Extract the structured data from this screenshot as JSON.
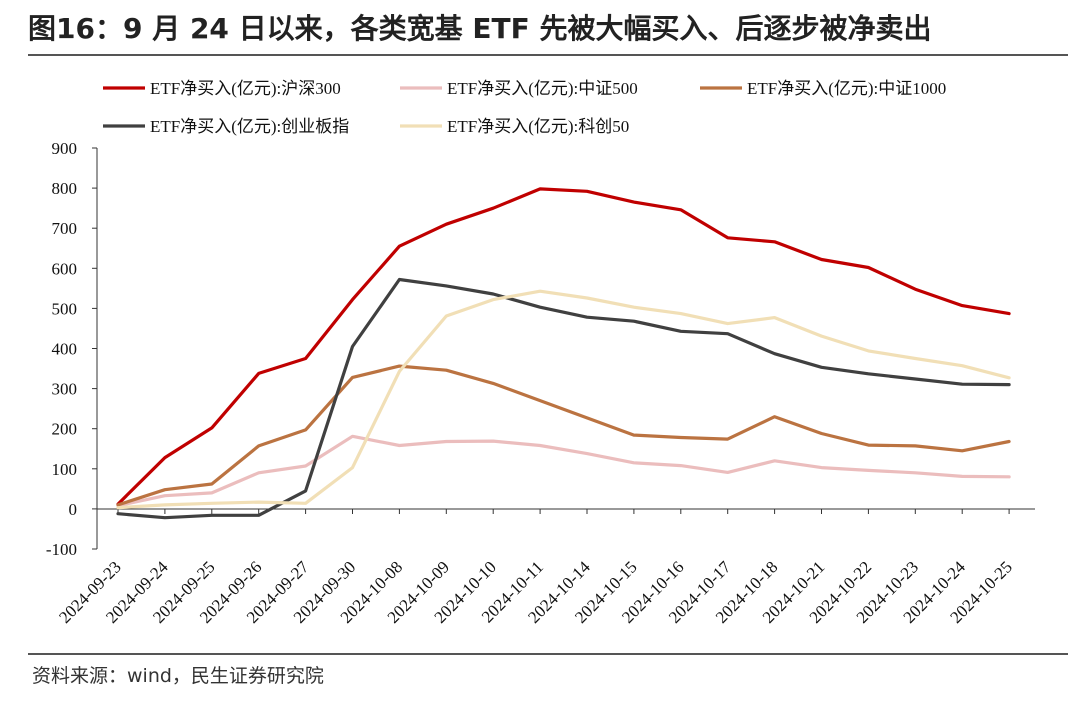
{
  "title": "图16：9 月 24 日以来，各类宽基 ETF 先被大幅买入、后逐步被净卖出",
  "source": "资料来源：wind，民生证券研究院",
  "chart_data": {
    "type": "line",
    "title": "图16：9 月 24 日以来，各类宽基 ETF 先被大幅买入、后逐步被净卖出",
    "xlabel": "",
    "ylabel": "",
    "ylim": [
      -100,
      900
    ],
    "yticks": [
      -100,
      0,
      100,
      200,
      300,
      400,
      500,
      600,
      700,
      800,
      900
    ],
    "grid": false,
    "legend_position": "top",
    "categories": [
      "2024-09-23",
      "2024-09-24",
      "2024-09-25",
      "2024-09-26",
      "2024-09-27",
      "2024-09-30",
      "2024-10-08",
      "2024-10-09",
      "2024-10-10",
      "2024-10-11",
      "2024-10-14",
      "2024-10-15",
      "2024-10-16",
      "2024-10-17",
      "2024-10-18",
      "2024-10-21",
      "2024-10-22",
      "2024-10-23",
      "2024-10-24",
      "2024-10-25"
    ],
    "series": [
      {
        "name": "ETF净买入(亿元):沪深300",
        "color": "#c00000",
        "values": [
          12,
          128,
          202,
          338,
          375,
          522,
          655,
          710,
          750,
          798,
          792,
          765,
          746,
          676,
          666,
          622,
          602,
          548,
          507,
          487
        ]
      },
      {
        "name": "ETF净买入(亿元):中证500",
        "color": "#ebbdbd",
        "values": [
          8,
          33,
          40,
          90,
          107,
          181,
          158,
          168,
          169,
          158,
          138,
          115,
          108,
          91,
          120,
          103,
          96,
          90,
          81,
          80
        ]
      },
      {
        "name": "ETF净买入(亿元):中证1000",
        "color": "#bb7341",
        "values": [
          10,
          48,
          62,
          157,
          197,
          328,
          356,
          346,
          313,
          270,
          227,
          184,
          178,
          174,
          230,
          188,
          159,
          157,
          145,
          168
        ]
      },
      {
        "name": "ETF净买入(亿元):创业板指",
        "color": "#404040",
        "values": [
          -12,
          -22,
          -16,
          -16,
          45,
          405,
          572,
          556,
          536,
          503,
          478,
          468,
          443,
          437,
          387,
          353,
          337,
          324,
          311,
          310
        ]
      },
      {
        "name": "ETF净买入(亿元):科创50",
        "color": "#f1dfb6",
        "values": [
          3,
          10,
          14,
          17,
          14,
          103,
          343,
          481,
          522,
          543,
          526,
          503,
          487,
          462,
          477,
          431,
          394,
          375,
          357,
          327
        ]
      }
    ]
  }
}
